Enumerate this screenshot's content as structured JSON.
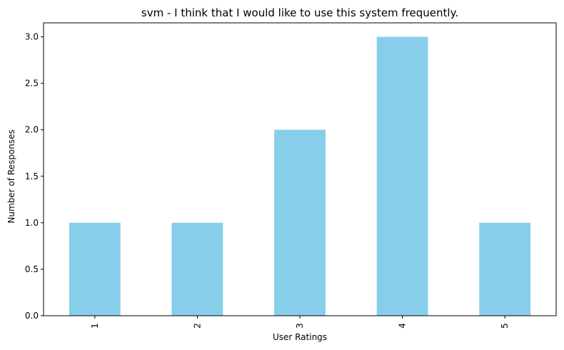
{
  "chart_data": {
    "type": "bar",
    "title": "svm - I think that I would like to use this system frequently.",
    "xlabel": "User Ratings",
    "ylabel": "Number of Responses",
    "categories": [
      "1",
      "2",
      "3",
      "4",
      "5"
    ],
    "values": [
      1,
      1,
      2,
      3,
      1
    ],
    "ylim": [
      0,
      3.15
    ],
    "yticks": [
      "0.0",
      "0.5",
      "1.0",
      "1.5",
      "2.0",
      "2.5",
      "3.0"
    ],
    "x_tick_rotation": "vertical",
    "grid": false,
    "legend": "none",
    "bar_color": "#87CEEB"
  }
}
